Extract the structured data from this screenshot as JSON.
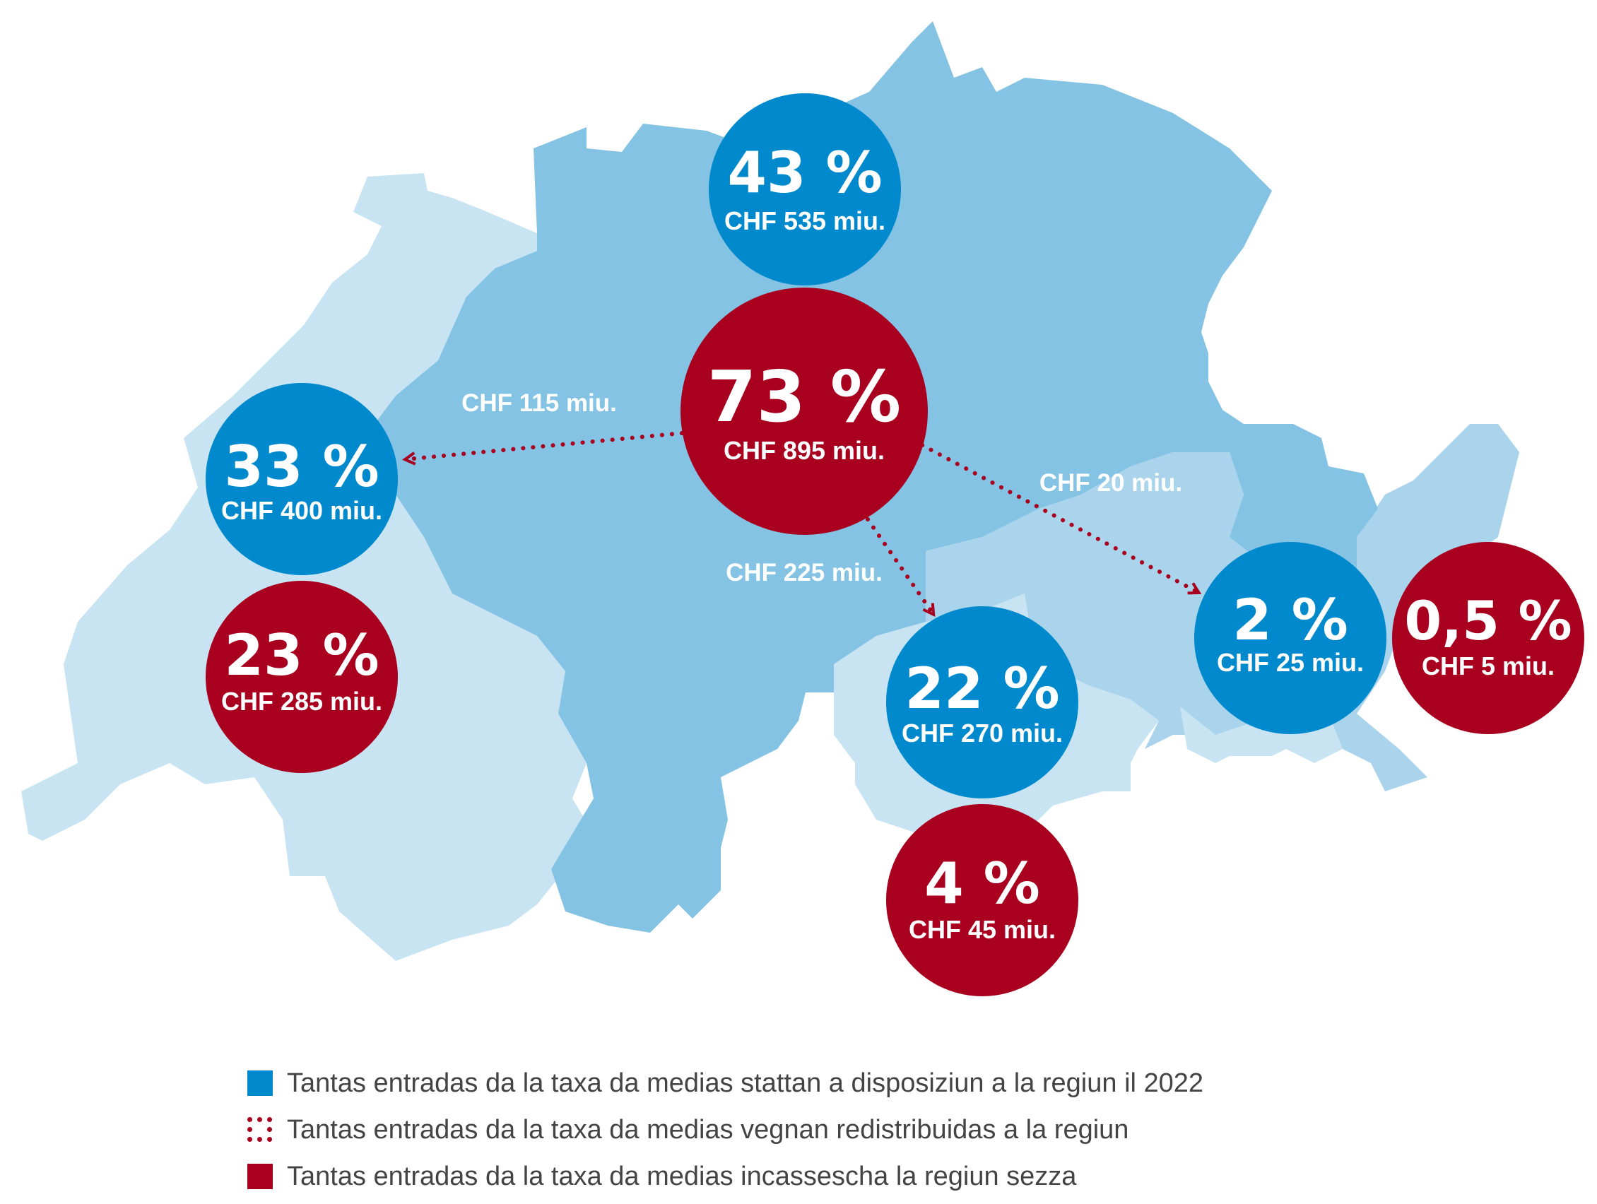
{
  "colors": {
    "region_light": "#c8e4f3",
    "region_mid": "#a9d4ec",
    "region_main": "#84c3e4",
    "available_blue": "#0089cc",
    "collected_red": "#a8001e",
    "flow_label": "#ffffff",
    "legend_text": "#444444"
  },
  "regions": [
    {
      "name": "north",
      "available": {
        "percent": "43 %",
        "amount": "CHF 535 miu."
      }
    },
    {
      "name": "center",
      "collected": {
        "percent": "73 %",
        "amount": "CHF 895 miu."
      }
    },
    {
      "name": "west",
      "available": {
        "percent": "33 %",
        "amount": "CHF 400 miu."
      },
      "collected": {
        "percent": "23 %",
        "amount": "CHF 285 miu."
      }
    },
    {
      "name": "south",
      "available": {
        "percent": "22 %",
        "amount": "CHF 270 miu."
      },
      "collected": {
        "percent": "4 %",
        "amount": "CHF 45 miu."
      }
    },
    {
      "name": "east",
      "available": {
        "percent": "2 %",
        "amount": "CHF 25 miu."
      },
      "collected": {
        "percent": "0,5 %",
        "amount": "CHF 5 miu."
      }
    }
  ],
  "flows": [
    {
      "to": "west",
      "label": "CHF 115 miu."
    },
    {
      "to": "south",
      "label": "CHF 225 miu."
    },
    {
      "to": "east",
      "label": "CHF 20 miu."
    }
  ],
  "legend": [
    {
      "type": "available",
      "icon": "blue-square-icon",
      "text": "Tantas entradas da la taxa da medias stattan a disposiziun a la regiun il 2022"
    },
    {
      "type": "redistributed",
      "icon": "red-dotted-square-icon",
      "text": "Tantas entradas da la taxa da medias vegnan redistribuidas a la regiun"
    },
    {
      "type": "collected",
      "icon": "red-square-icon",
      "text": "Tantas entradas da la taxa da medias incassescha la regiun sezza"
    }
  ]
}
